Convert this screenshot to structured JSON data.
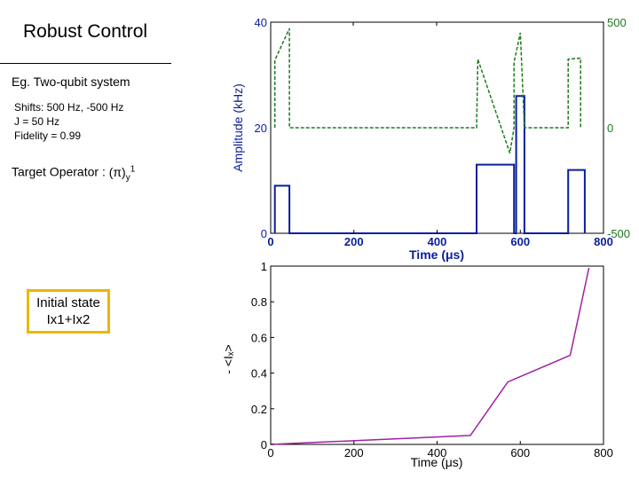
{
  "slide": {
    "title": "Robust Control",
    "example": "Eg. Two-qubit system",
    "params": [
      "Shifts: 500 Hz, -500 Hz",
      "J = 50 Hz",
      "Fidelity = 0.99"
    ],
    "target_label": "Target Operator :",
    "target_symbol": "(π)",
    "target_sub": "y",
    "target_sup": "1",
    "initial_state_title": "Initial state",
    "initial_state_value": "Ix1+Ix2"
  },
  "colors": {
    "amplitude": "#0a1e9e",
    "phase": "#1e7a1e",
    "signal": "#a020a0",
    "state_border": "#e8b800"
  },
  "chart_data": [
    {
      "type": "line",
      "xlabel": "Time (μs)",
      "ylabel": "Amplitude (kHz)",
      "xlim": [
        0,
        800
      ],
      "ylim": [
        0,
        40
      ],
      "y2lim": [
        -500,
        500
      ],
      "xticks": [
        "0",
        "200",
        "400",
        "600",
        "800"
      ],
      "yticks": [
        "0",
        "20",
        "40"
      ],
      "y2ticks": [
        "-500",
        "0",
        "500"
      ],
      "grid": false,
      "series": [
        {
          "name": "",
          "axis": "left",
          "style": "solid",
          "x": [
            10,
            10,
            45,
            45,
            495,
            495,
            585,
            585,
            590,
            590,
            610,
            610,
            715,
            715,
            755,
            755
          ],
          "y": [
            0,
            9,
            9,
            0,
            0,
            13,
            13,
            0,
            0,
            26,
            26,
            0,
            0,
            12,
            12,
            0
          ]
        },
        {
          "name": "",
          "axis": "right",
          "style": "dashed",
          "x": [
            10,
            10,
            45,
            45,
            495,
            495,
            498,
            575,
            585,
            585,
            600,
            610,
            610,
            715,
            715,
            745,
            745
          ],
          "y": [
            0,
            320,
            470,
            0,
            0,
            0,
            325,
            -120,
            0,
            310,
            450,
            0,
            0,
            0,
            325,
            330,
            0
          ]
        }
      ]
    },
    {
      "type": "line",
      "xlabel": "Time (μs)",
      "ylabel": "- <Iₓ>",
      "xlim": [
        0,
        800
      ],
      "ylim": [
        0,
        1
      ],
      "xticks": [
        "0",
        "200",
        "400",
        "600",
        "800"
      ],
      "yticks": [
        "0",
        "0.2",
        "0.4",
        "0.6",
        "0.8",
        "1"
      ],
      "grid": false,
      "series": [
        {
          "name": "",
          "x": [
            0,
            480,
            570,
            720,
            765
          ],
          "y": [
            0,
            0.05,
            0.35,
            0.5,
            0.99
          ]
        }
      ]
    }
  ]
}
